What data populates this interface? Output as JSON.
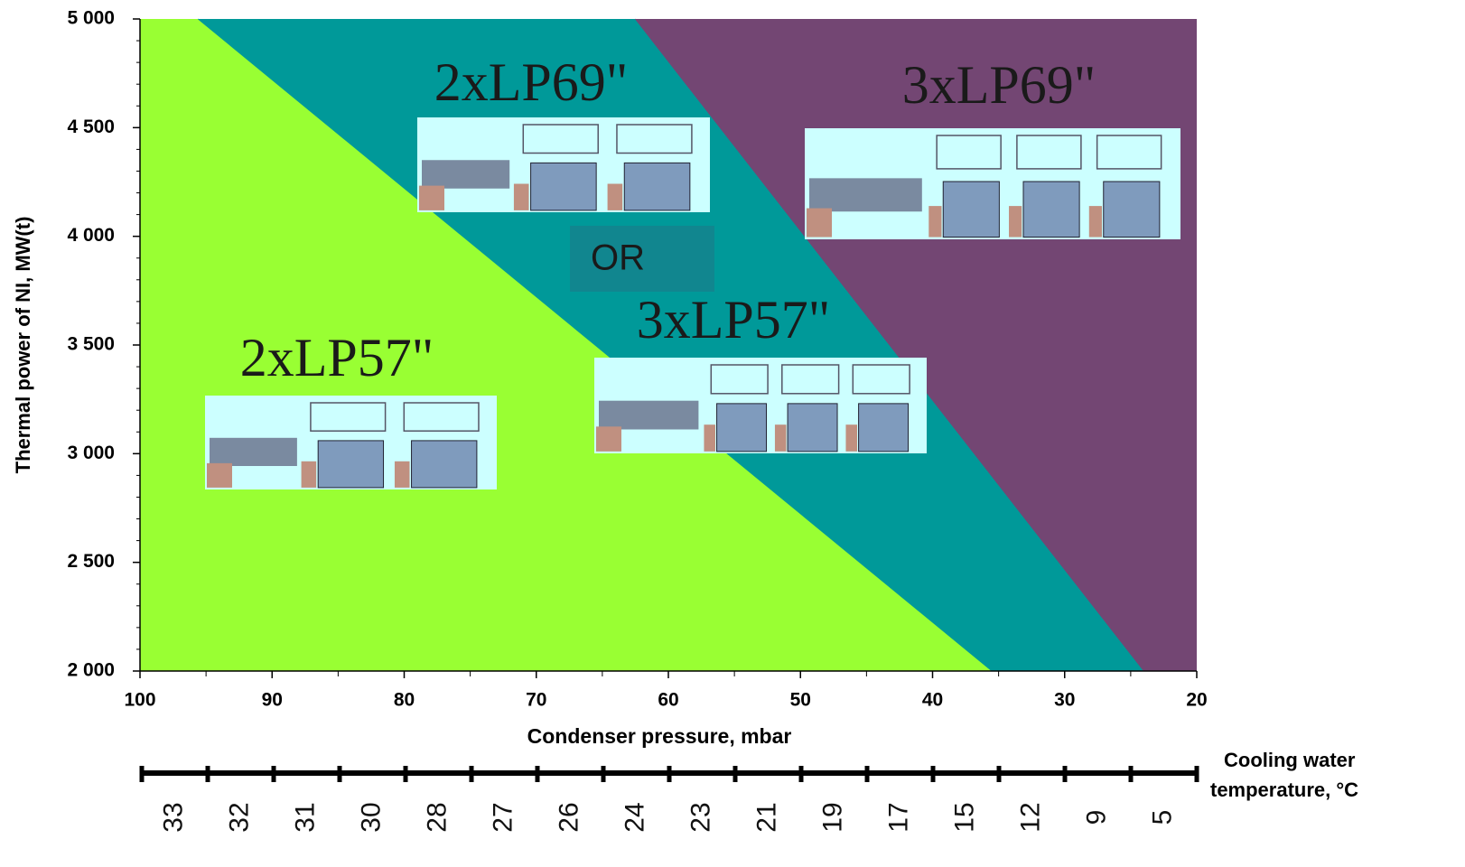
{
  "chart_data": {
    "type": "region",
    "xlabel": "Condenser pressure, mbar",
    "ylabel": "Thermal power of  NI, MW(t)",
    "xlim": [
      100,
      20
    ],
    "ylim": [
      2000,
      5000
    ],
    "xticks": [
      100,
      90,
      80,
      70,
      60,
      50,
      40,
      30,
      20
    ],
    "yticks": [
      {
        "value": 2000,
        "label": "2 000"
      },
      {
        "value": 2500,
        "label": "2 500"
      },
      {
        "value": 3000,
        "label": "3 000"
      },
      {
        "value": 3500,
        "label": "3 500"
      },
      {
        "value": 4000,
        "label": "4 000"
      },
      {
        "value": 4500,
        "label": "4 500"
      },
      {
        "value": 5000,
        "label": "5 000"
      }
    ],
    "region_colors": [
      "#99ff33",
      "#009999",
      "#734673"
    ],
    "boundaries": [
      {
        "x": [
          95.6,
          35.5
        ],
        "y": [
          5000,
          2000
        ]
      },
      {
        "x": [
          62.5,
          24
        ],
        "y": [
          5000,
          2000
        ]
      }
    ],
    "annotations": [
      "2xLP57\"",
      "2xLP69\"",
      "OR",
      "3xLP57\"",
      "3xLP69\""
    ],
    "x2label": "Cooling water temperature, °C",
    "x2_labels": [
      33,
      32,
      31,
      30,
      28,
      27,
      26,
      24,
      23,
      21,
      19,
      17,
      15,
      12,
      9,
      5
    ]
  }
}
